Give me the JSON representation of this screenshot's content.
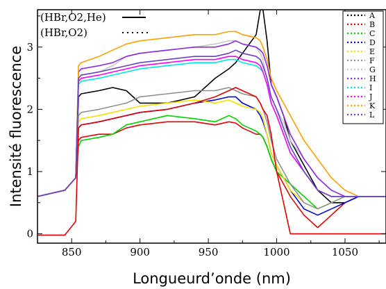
{
  "chart_data": {
    "type": "line",
    "title": "",
    "xlabel": "Longueurd’onde (nm)",
    "ylabel": "Intensité fluorescence",
    "xlim": [
      825,
      1080
    ],
    "ylim": [
      -0.15,
      3.6
    ],
    "xticks": [
      850,
      900,
      950,
      1000,
      1050
    ],
    "yticks": [
      0,
      1,
      2,
      3
    ],
    "grid": false,
    "legend_position": "top-right",
    "style_legend": [
      {
        "label": "(HBr,O2,He)",
        "line": "solid"
      },
      {
        "label": "(HBr,O2)",
        "line": "dotted"
      }
    ],
    "x": [
      825,
      845,
      853,
      855,
      857,
      870,
      880,
      890,
      900,
      920,
      940,
      955,
      965,
      970,
      975,
      985,
      988,
      990,
      993,
      996,
      1000,
      1005,
      1010,
      1020,
      1030,
      1040,
      1050,
      1060,
      1080
    ],
    "series": [
      {
        "name": "A",
        "color": "#000000",
        "values": [
          0.6,
          0.7,
          0.9,
          2.2,
          2.25,
          2.3,
          2.35,
          2.3,
          2.1,
          2.1,
          2.2,
          2.5,
          2.65,
          2.75,
          2.9,
          3.2,
          3.6,
          3.6,
          3.1,
          2.4,
          2.2,
          1.9,
          1.5,
          1.1,
          0.7,
          0.5,
          0.5,
          0.6,
          0.6
        ]
      },
      {
        "name": "B",
        "color": "#e00000",
        "values": [
          0.6,
          0.7,
          0.9,
          1.5,
          1.55,
          1.6,
          1.6,
          1.7,
          1.75,
          1.8,
          1.8,
          1.75,
          1.8,
          1.78,
          1.7,
          1.6,
          1.6,
          1.55,
          1.4,
          1.2,
          1.0,
          0.8,
          0.6,
          0.3,
          0.1,
          0.3,
          0.5,
          0.6,
          0.6
        ]
      },
      {
        "name": "C",
        "color": "#00d000",
        "values": [
          0.6,
          0.7,
          0.9,
          1.4,
          1.5,
          1.55,
          1.6,
          1.75,
          1.8,
          1.9,
          1.85,
          1.8,
          1.9,
          1.85,
          1.75,
          1.65,
          1.6,
          1.55,
          1.4,
          1.2,
          1.0,
          0.9,
          0.8,
          0.6,
          0.4,
          0.5,
          0.6,
          0.6,
          0.6
        ]
      },
      {
        "name": "D",
        "color": "#0000e0",
        "values": [
          0.6,
          0.7,
          0.9,
          1.7,
          1.75,
          1.8,
          1.85,
          1.9,
          1.95,
          2.0,
          2.1,
          2.15,
          2.2,
          2.2,
          2.1,
          2.0,
          1.9,
          1.8,
          1.6,
          1.3,
          1.1,
          0.9,
          0.7,
          0.4,
          0.3,
          0.4,
          0.5,
          0.6,
          0.6
        ]
      },
      {
        "name": "E",
        "color": "#f2e000",
        "values": [
          0.6,
          0.7,
          0.9,
          1.8,
          1.85,
          1.9,
          1.95,
          2.0,
          2.05,
          2.1,
          2.15,
          2.1,
          2.15,
          2.1,
          2.05,
          2.0,
          1.95,
          1.85,
          1.6,
          1.3,
          1.1,
          0.9,
          0.7,
          0.5,
          0.4,
          0.5,
          0.6,
          0.6,
          0.6
        ]
      },
      {
        "name": "F",
        "color": "#909090",
        "values": [
          0.6,
          0.7,
          0.9,
          1.9,
          1.95,
          2.0,
          2.05,
          2.1,
          2.2,
          2.25,
          2.3,
          2.3,
          2.35,
          2.3,
          2.25,
          2.2,
          2.1,
          2.0,
          1.8,
          1.5,
          1.2,
          1.0,
          0.8,
          0.5,
          0.4,
          0.5,
          0.6,
          0.6,
          0.6
        ]
      },
      {
        "name": "G",
        "color": "#c8c8c8",
        "values": [
          0.6,
          0.7,
          0.9,
          2.5,
          2.55,
          2.6,
          2.7,
          2.85,
          2.9,
          2.95,
          3.0,
          3.05,
          3.1,
          3.1,
          3.05,
          3.0,
          2.9,
          2.8,
          2.5,
          2.2,
          2.0,
          1.8,
          1.5,
          1.2,
          0.9,
          0.7,
          0.6,
          0.6,
          0.6
        ]
      },
      {
        "name": "H",
        "color": "#8a2be2",
        "values": [
          0.6,
          0.7,
          0.9,
          2.6,
          2.65,
          2.7,
          2.75,
          2.85,
          2.9,
          2.95,
          3.0,
          3.0,
          3.05,
          3.1,
          3.05,
          3.0,
          2.95,
          2.9,
          2.7,
          2.4,
          2.2,
          1.9,
          1.6,
          1.2,
          0.9,
          0.7,
          0.6,
          0.6,
          0.6
        ]
      },
      {
        "name": "I",
        "color": "#00e5e5",
        "values": [
          0.6,
          0.7,
          0.9,
          2.4,
          2.45,
          2.5,
          2.55,
          2.6,
          2.65,
          2.7,
          2.75,
          2.75,
          2.8,
          2.8,
          2.75,
          2.7,
          2.65,
          2.6,
          2.4,
          2.1,
          1.9,
          1.6,
          1.3,
          1.0,
          0.7,
          0.6,
          0.6,
          0.6,
          0.6
        ]
      },
      {
        "name": "J",
        "color": "#ff00ff",
        "values": [
          0.6,
          0.7,
          0.9,
          2.45,
          2.5,
          2.55,
          2.6,
          2.65,
          2.7,
          2.75,
          2.8,
          2.8,
          2.85,
          2.85,
          2.8,
          2.75,
          2.7,
          2.6,
          2.4,
          2.1,
          1.9,
          1.6,
          1.3,
          1.0,
          0.7,
          0.6,
          0.6,
          0.6,
          0.6
        ]
      },
      {
        "name": "K",
        "color": "#ffa000",
        "values": [
          0.6,
          0.7,
          0.9,
          2.7,
          2.75,
          2.85,
          2.95,
          3.05,
          3.1,
          3.15,
          3.2,
          3.2,
          3.25,
          3.25,
          3.2,
          3.15,
          3.1,
          3.0,
          2.8,
          2.5,
          2.3,
          2.1,
          1.9,
          1.5,
          1.2,
          0.9,
          0.7,
          0.6,
          0.6
        ]
      },
      {
        "name": "L",
        "color": "#6a40c0",
        "values": [
          0.6,
          0.7,
          0.9,
          2.5,
          2.55,
          2.6,
          2.65,
          2.7,
          2.75,
          2.8,
          2.85,
          2.85,
          2.9,
          2.95,
          2.9,
          2.85,
          2.8,
          2.7,
          2.5,
          2.2,
          2.0,
          1.7,
          1.4,
          1.0,
          0.7,
          0.6,
          0.6,
          0.6,
          0.6
        ]
      },
      {
        "name": "",
        "color": "#e00000",
        "values": [
          -0.02,
          -0.02,
          0.2,
          1.7,
          1.75,
          1.8,
          1.85,
          1.9,
          1.95,
          2.0,
          2.1,
          2.2,
          2.3,
          2.35,
          2.3,
          2.2,
          2.1,
          2.0,
          1.9,
          1.6,
          1.0,
          0.5,
          0.0,
          0.0,
          0.0,
          0.0,
          0.0,
          0.0,
          0.0
        ]
      }
    ]
  }
}
